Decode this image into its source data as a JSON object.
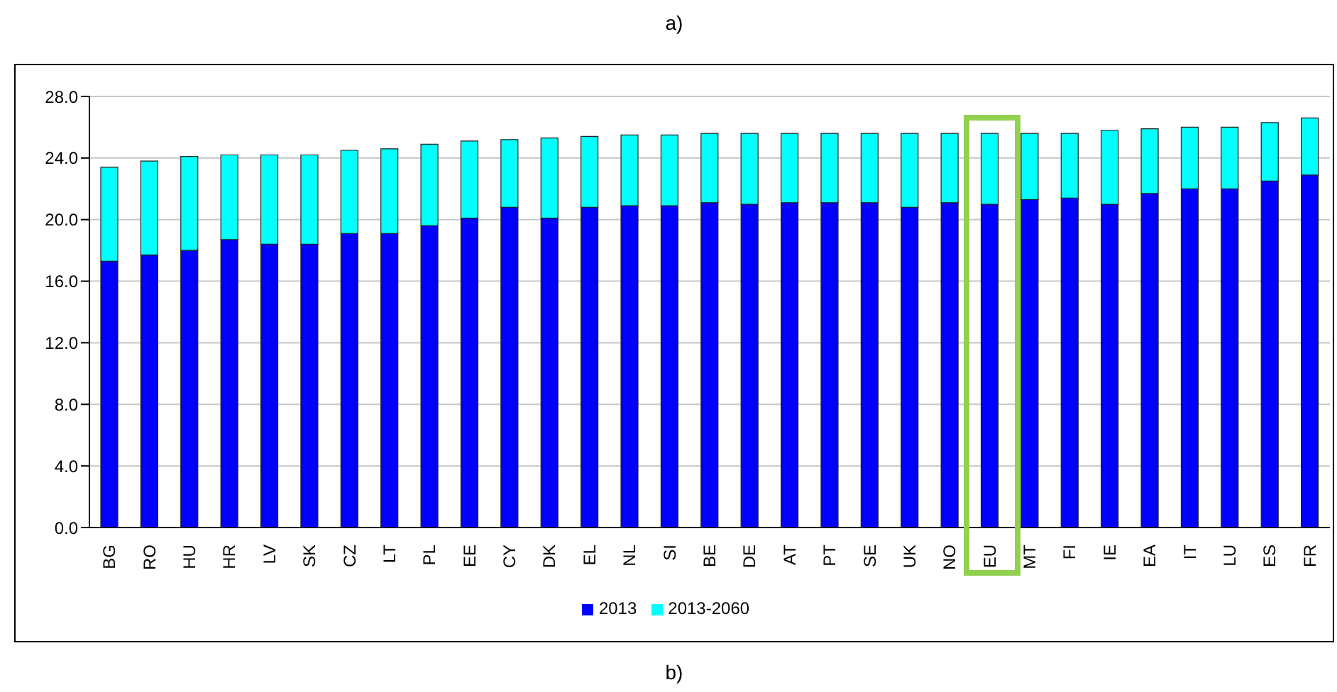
{
  "chart_data": {
    "type": "bar",
    "title": "a)",
    "stacked": true,
    "categories": [
      "BG",
      "RO",
      "HU",
      "HR",
      "LV",
      "SK",
      "CZ",
      "LT",
      "PL",
      "EE",
      "CY",
      "DK",
      "EL",
      "NL",
      "SI",
      "BE",
      "DE",
      "AT",
      "PT",
      "SE",
      "UK",
      "NO",
      "EU",
      "MT",
      "FI",
      "IE",
      "EA",
      "IT",
      "LU",
      "ES",
      "FR"
    ],
    "series": [
      {
        "name": "2013",
        "color": "#0000ff",
        "values": [
          17.3,
          17.7,
          18.0,
          18.7,
          18.4,
          18.4,
          19.1,
          19.1,
          19.6,
          20.1,
          20.8,
          20.1,
          20.8,
          20.9,
          20.9,
          21.1,
          21.0,
          21.1,
          21.1,
          21.1,
          20.8,
          21.1,
          21.0,
          21.3,
          21.4,
          21.0,
          21.7,
          22.0,
          22.0,
          22.5,
          22.9
        ]
      },
      {
        "name": "2013-2060",
        "color": "#00ffff",
        "values": [
          6.1,
          6.1,
          6.1,
          5.5,
          5.8,
          5.8,
          5.4,
          5.5,
          5.3,
          5.0,
          4.4,
          5.2,
          4.6,
          4.6,
          4.6,
          4.5,
          4.6,
          4.5,
          4.5,
          4.5,
          4.8,
          4.5,
          4.6,
          4.3,
          4.2,
          4.8,
          4.2,
          4.0,
          4.0,
          3.8,
          3.7
        ]
      }
    ],
    "ylim": [
      0,
      28
    ],
    "yticks": [
      {
        "value": 0,
        "label": "0.0"
      },
      {
        "value": 4,
        "label": "4.0"
      },
      {
        "value": 8,
        "label": "8.0"
      },
      {
        "value": 12,
        "label": "12.0"
      },
      {
        "value": 16,
        "label": "16.0"
      },
      {
        "value": 20,
        "label": "20.0"
      },
      {
        "value": 24,
        "label": "24.0"
      },
      {
        "value": 28,
        "label": "28.0"
      }
    ],
    "grid": "y",
    "legend": "bottom",
    "annotations": [
      "b)"
    ]
  }
}
